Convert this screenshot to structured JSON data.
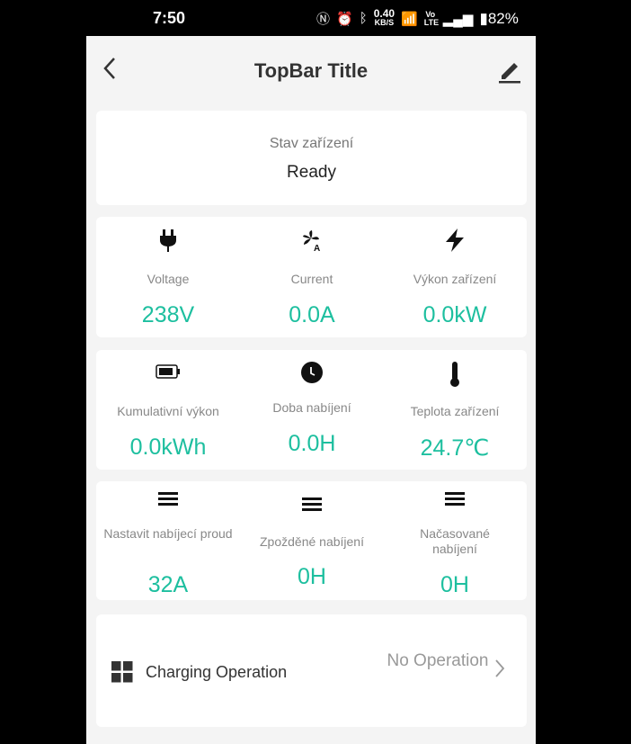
{
  "status_bar": {
    "time": "7:50",
    "net_speed": "0.40",
    "net_unit": "KB/S",
    "volte": "Vo LTE",
    "battery": "82%"
  },
  "topbar": {
    "title": "TopBar Title"
  },
  "device_status": {
    "label": "Stav zařízení",
    "value": "Ready"
  },
  "rows": [
    [
      {
        "icon": "plug-icon",
        "label": "Voltage",
        "value": "238V"
      },
      {
        "icon": "fan-current-icon",
        "label": "Current",
        "value": "0.0A"
      },
      {
        "icon": "lightning-icon",
        "label": "Výkon zařízení",
        "value": "0.0kW"
      }
    ],
    [
      {
        "icon": "battery-icon",
        "label": "Kumulativní výkon",
        "value": "0.0kWh"
      },
      {
        "icon": "clock-icon",
        "label": "Doba nabíjení",
        "value": "0.0H"
      },
      {
        "icon": "thermometer-icon",
        "label": "Teplota zařízení",
        "value": "24.7℃"
      }
    ],
    [
      {
        "icon": "menu-icon",
        "label": "Nastavit nabíjecí proud",
        "value": "32A"
      },
      {
        "icon": "menu-icon",
        "label": "Zpožděné nabíjení",
        "value": "0H"
      },
      {
        "icon": "menu-icon",
        "label": "Načasované nabíjení",
        "value": "0H"
      }
    ]
  ],
  "operation": {
    "label": "Charging Operation",
    "value": "No Operation"
  },
  "colors": {
    "accent": "#1dbf9f",
    "background": "#f4f4f4"
  }
}
